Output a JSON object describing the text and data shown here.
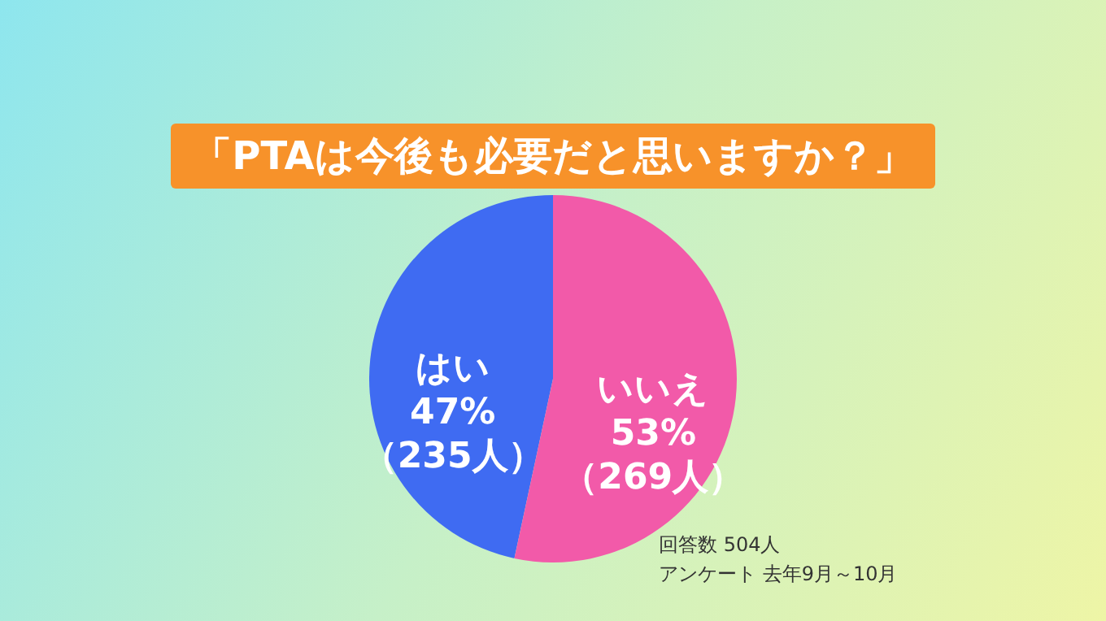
{
  "chart_data": {
    "type": "pie",
    "title": "「PTAは今後も必要だと思いますか？」",
    "categories": [
      "はい",
      "いいえ"
    ],
    "values": [
      235,
      269
    ],
    "value_labels": [
      "47%\n（235人）",
      "53%\n（269人）"
    ],
    "colors": [
      "#3f6bf2",
      "#f25aa9"
    ],
    "annotations": [
      "回答数 504人",
      "アンケート 去年9月～10月"
    ]
  }
}
